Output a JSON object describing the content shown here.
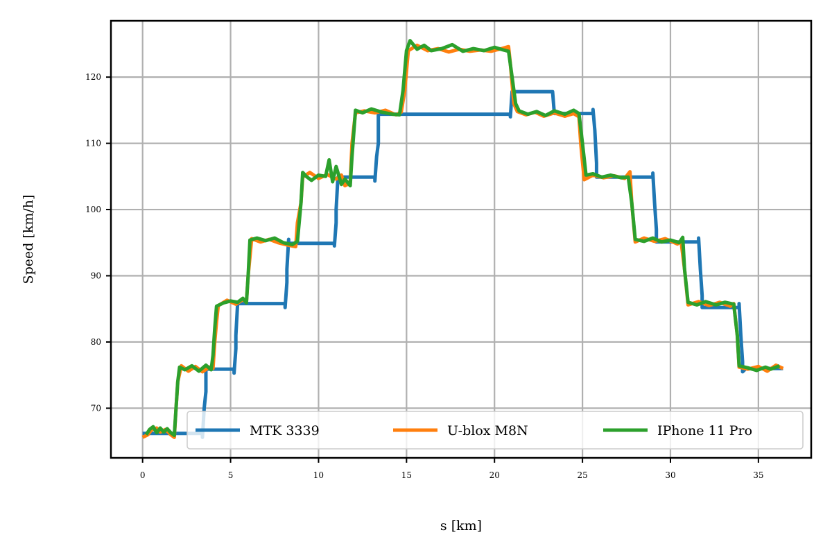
{
  "chart_data": {
    "type": "line",
    "title": "",
    "xlabel": "s [km]",
    "ylabel": "Speed [km/h]",
    "xlim": [
      -1.8,
      38.0
    ],
    "ylim": [
      62.5,
      128.5
    ],
    "xticks": [
      0,
      5,
      10,
      15,
      20,
      25,
      30,
      35
    ],
    "yticks": [
      70,
      80,
      90,
      100,
      110,
      120
    ],
    "grid": true,
    "legend_position": "lower-right",
    "legend_columns": 3,
    "series": [
      {
        "name": "MTK 3339",
        "color": "#1f77b4",
        "points": [
          [
            0.0,
            66.2
          ],
          [
            3.4,
            66.2
          ],
          [
            3.4,
            65.6
          ],
          [
            3.5,
            70.0
          ],
          [
            3.6,
            72.5
          ],
          [
            3.6,
            75.9
          ],
          [
            5.2,
            75.9
          ],
          [
            5.2,
            75.3
          ],
          [
            5.3,
            79.0
          ],
          [
            5.3,
            81.0
          ],
          [
            5.4,
            85.8
          ],
          [
            8.1,
            85.8
          ],
          [
            8.1,
            85.2
          ],
          [
            8.2,
            89.0
          ],
          [
            8.2,
            91.0
          ],
          [
            8.3,
            95.5
          ],
          [
            8.3,
            94.9
          ],
          [
            10.9,
            94.9
          ],
          [
            10.9,
            94.5
          ],
          [
            11.0,
            98.0
          ],
          [
            11.0,
            100.0
          ],
          [
            11.1,
            104.9
          ],
          [
            13.2,
            104.9
          ],
          [
            13.2,
            104.3
          ],
          [
            13.3,
            108.0
          ],
          [
            13.4,
            110.0
          ],
          [
            13.4,
            114.4
          ],
          [
            20.9,
            114.4
          ],
          [
            20.9,
            114.0
          ],
          [
            21.0,
            117.8
          ],
          [
            23.3,
            117.8
          ],
          [
            23.4,
            114.5
          ],
          [
            25.6,
            114.5
          ],
          [
            25.6,
            115.1
          ],
          [
            25.7,
            112.0
          ],
          [
            25.8,
            107.0
          ],
          [
            25.8,
            104.9
          ],
          [
            29.0,
            104.9
          ],
          [
            29.0,
            105.5
          ],
          [
            29.1,
            101.0
          ],
          [
            29.2,
            97.0
          ],
          [
            29.2,
            95.1
          ],
          [
            31.6,
            95.1
          ],
          [
            31.6,
            95.7
          ],
          [
            31.7,
            91.0
          ],
          [
            31.8,
            87.0
          ],
          [
            31.8,
            85.2
          ],
          [
            33.9,
            85.2
          ],
          [
            33.9,
            85.8
          ],
          [
            34.0,
            81.0
          ],
          [
            34.1,
            77.0
          ],
          [
            34.1,
            75.5
          ],
          [
            34.3,
            76.0
          ],
          [
            36.4,
            76.0
          ]
        ]
      },
      {
        "name": "U-blox M8N",
        "color": "#ff7f0e",
        "points": [
          [
            0.0,
            65.6
          ],
          [
            0.3,
            66.0
          ],
          [
            0.5,
            66.7
          ],
          [
            0.8,
            67.0
          ],
          [
            1.0,
            66.4
          ],
          [
            1.3,
            66.8
          ],
          [
            1.6,
            66.0
          ],
          [
            1.8,
            65.6
          ],
          [
            1.9,
            70.0
          ],
          [
            2.0,
            74.0
          ],
          [
            2.2,
            76.4
          ],
          [
            2.6,
            75.6
          ],
          [
            3.0,
            76.3
          ],
          [
            3.4,
            75.5
          ],
          [
            3.8,
            76.2
          ],
          [
            4.0,
            76.0
          ],
          [
            4.1,
            80.0
          ],
          [
            4.2,
            83.0
          ],
          [
            4.3,
            85.5
          ],
          [
            4.8,
            86.3
          ],
          [
            5.3,
            85.7
          ],
          [
            5.7,
            86.4
          ],
          [
            5.9,
            86.0
          ],
          [
            6.0,
            90.0
          ],
          [
            6.2,
            95.6
          ],
          [
            6.7,
            95.1
          ],
          [
            7.2,
            95.5
          ],
          [
            7.7,
            95.0
          ],
          [
            8.3,
            94.6
          ],
          [
            8.7,
            94.4
          ],
          [
            8.8,
            98.0
          ],
          [
            9.0,
            101.0
          ],
          [
            9.1,
            104.9
          ],
          [
            9.5,
            105.6
          ],
          [
            10.0,
            104.7
          ],
          [
            10.5,
            105.3
          ],
          [
            11.0,
            104.6
          ],
          [
            11.3,
            105.2
          ],
          [
            11.5,
            103.6
          ],
          [
            11.8,
            104.0
          ],
          [
            11.9,
            110.0
          ],
          [
            12.1,
            114.6
          ],
          [
            12.6,
            114.9
          ],
          [
            13.2,
            114.6
          ],
          [
            13.8,
            115.0
          ],
          [
            14.4,
            114.3
          ],
          [
            14.7,
            114.7
          ],
          [
            14.9,
            118.0
          ],
          [
            15.1,
            124.0
          ],
          [
            15.6,
            124.8
          ],
          [
            16.2,
            124.0
          ],
          [
            16.8,
            124.3
          ],
          [
            17.4,
            123.8
          ],
          [
            18.0,
            124.2
          ],
          [
            18.6,
            123.9
          ],
          [
            19.2,
            124.1
          ],
          [
            19.8,
            123.9
          ],
          [
            20.4,
            124.3
          ],
          [
            20.8,
            124.6
          ],
          [
            20.9,
            122.0
          ],
          [
            21.1,
            116.0
          ],
          [
            21.3,
            114.8
          ],
          [
            21.8,
            114.3
          ],
          [
            22.3,
            114.7
          ],
          [
            22.8,
            114.1
          ],
          [
            23.4,
            114.6
          ],
          [
            24.0,
            114.1
          ],
          [
            24.5,
            114.5
          ],
          [
            24.8,
            114.0
          ],
          [
            24.9,
            110.0
          ],
          [
            25.1,
            104.5
          ],
          [
            25.6,
            105.2
          ],
          [
            26.2,
            104.8
          ],
          [
            26.8,
            105.1
          ],
          [
            27.4,
            104.7
          ],
          [
            27.7,
            105.7
          ],
          [
            27.8,
            101.0
          ],
          [
            28.0,
            95.1
          ],
          [
            28.5,
            95.7
          ],
          [
            29.1,
            95.2
          ],
          [
            29.7,
            95.6
          ],
          [
            30.4,
            94.8
          ],
          [
            30.6,
            95.3
          ],
          [
            30.8,
            91.0
          ],
          [
            31.0,
            85.6
          ],
          [
            31.6,
            86.1
          ],
          [
            32.2,
            85.5
          ],
          [
            32.8,
            86.0
          ],
          [
            33.4,
            85.4
          ],
          [
            33.6,
            85.8
          ],
          [
            33.8,
            81.0
          ],
          [
            33.9,
            76.2
          ],
          [
            34.4,
            75.9
          ],
          [
            35.0,
            76.3
          ],
          [
            35.5,
            75.6
          ],
          [
            36.0,
            76.5
          ],
          [
            36.4,
            76.0
          ]
        ]
      },
      {
        "name": "IPhone 11 Pro",
        "color": "#2ca02c",
        "points": [
          [
            0.2,
            66.0
          ],
          [
            0.4,
            66.8
          ],
          [
            0.6,
            67.2
          ],
          [
            0.8,
            66.3
          ],
          [
            1.0,
            67.0
          ],
          [
            1.2,
            66.4
          ],
          [
            1.4,
            66.9
          ],
          [
            1.6,
            66.3
          ],
          [
            1.8,
            65.9
          ],
          [
            1.9,
            70.0
          ],
          [
            2.0,
            74.0
          ],
          [
            2.1,
            76.2
          ],
          [
            2.4,
            75.8
          ],
          [
            2.8,
            76.4
          ],
          [
            3.2,
            75.6
          ],
          [
            3.6,
            76.5
          ],
          [
            3.9,
            75.8
          ],
          [
            4.0,
            78.0
          ],
          [
            4.1,
            82.0
          ],
          [
            4.2,
            85.4
          ],
          [
            4.6,
            85.9
          ],
          [
            5.0,
            86.2
          ],
          [
            5.4,
            86.0
          ],
          [
            5.7,
            86.6
          ],
          [
            5.9,
            85.9
          ],
          [
            6.0,
            90.0
          ],
          [
            6.1,
            95.4
          ],
          [
            6.5,
            95.7
          ],
          [
            7.0,
            95.3
          ],
          [
            7.5,
            95.7
          ],
          [
            8.0,
            95.0
          ],
          [
            8.5,
            94.7
          ],
          [
            8.8,
            95.2
          ],
          [
            9.0,
            101.0
          ],
          [
            9.1,
            105.6
          ],
          [
            9.3,
            105.0
          ],
          [
            9.6,
            104.4
          ],
          [
            10.0,
            105.2
          ],
          [
            10.4,
            105.0
          ],
          [
            10.6,
            107.5
          ],
          [
            10.8,
            104.2
          ],
          [
            11.0,
            106.5
          ],
          [
            11.3,
            103.8
          ],
          [
            11.5,
            104.6
          ],
          [
            11.8,
            103.6
          ],
          [
            11.9,
            108.0
          ],
          [
            12.1,
            115.0
          ],
          [
            12.5,
            114.6
          ],
          [
            13.0,
            115.2
          ],
          [
            13.6,
            114.7
          ],
          [
            14.2,
            114.4
          ],
          [
            14.6,
            114.3
          ],
          [
            14.8,
            118.0
          ],
          [
            15.0,
            124.0
          ],
          [
            15.2,
            125.5
          ],
          [
            15.6,
            124.2
          ],
          [
            16.0,
            124.8
          ],
          [
            16.4,
            124.0
          ],
          [
            17.0,
            124.3
          ],
          [
            17.6,
            124.9
          ],
          [
            18.2,
            123.9
          ],
          [
            18.8,
            124.3
          ],
          [
            19.4,
            124.0
          ],
          [
            20.0,
            124.5
          ],
          [
            20.5,
            124.1
          ],
          [
            20.8,
            123.9
          ],
          [
            21.0,
            120.0
          ],
          [
            21.2,
            116.0
          ],
          [
            21.4,
            114.9
          ],
          [
            21.9,
            114.4
          ],
          [
            22.4,
            114.8
          ],
          [
            22.9,
            114.2
          ],
          [
            23.4,
            114.9
          ],
          [
            24.0,
            114.4
          ],
          [
            24.5,
            115.0
          ],
          [
            24.8,
            114.5
          ],
          [
            25.0,
            110.0
          ],
          [
            25.2,
            105.2
          ],
          [
            25.6,
            105.4
          ],
          [
            26.1,
            104.9
          ],
          [
            26.6,
            105.2
          ],
          [
            27.2,
            104.8
          ],
          [
            27.6,
            104.9
          ],
          [
            27.8,
            101.0
          ],
          [
            28.0,
            95.5
          ],
          [
            28.5,
            95.2
          ],
          [
            29.0,
            95.7
          ],
          [
            29.5,
            95.1
          ],
          [
            30.0,
            95.4
          ],
          [
            30.5,
            95.0
          ],
          [
            30.7,
            95.8
          ],
          [
            30.8,
            91.0
          ],
          [
            31.0,
            86.0
          ],
          [
            31.5,
            85.6
          ],
          [
            32.0,
            86.1
          ],
          [
            32.6,
            85.6
          ],
          [
            33.1,
            86.0
          ],
          [
            33.6,
            85.7
          ],
          [
            33.8,
            81.0
          ],
          [
            33.9,
            76.4
          ],
          [
            34.4,
            76.1
          ],
          [
            34.9,
            75.7
          ],
          [
            35.4,
            76.2
          ],
          [
            35.7,
            75.9
          ],
          [
            36.2,
            76.4
          ]
        ]
      }
    ]
  }
}
